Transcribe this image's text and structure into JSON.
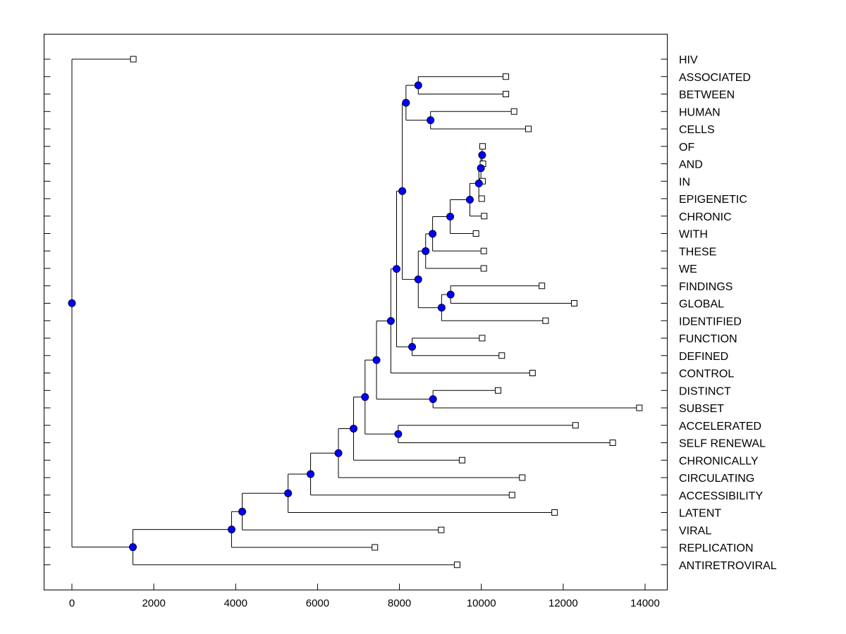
{
  "chart_data": {
    "type": "dendrogram",
    "title": "",
    "xlabel": "",
    "ylabel": "",
    "xlim": [
      -700,
      14700
    ],
    "x_ticks": [
      0,
      2000,
      4000,
      6000,
      8000,
      10000,
      12000,
      14000
    ],
    "x_tick_labels": [
      "0",
      "2000",
      "4000",
      "6000",
      "8000",
      "10000",
      "12000",
      "14000"
    ],
    "orientation": "leaves-right",
    "grid": false,
    "leaves": [
      {
        "label": "HIV",
        "x": 1500
      },
      {
        "label": "ASSOCIATED",
        "x": 10600
      },
      {
        "label": "BETWEEN",
        "x": 10600
      },
      {
        "label": "HUMAN",
        "x": 10800
      },
      {
        "label": "CELLS",
        "x": 11150
      },
      {
        "label": "OF",
        "x": 10030
      },
      {
        "label": "AND",
        "x": 10040
      },
      {
        "label": "IN",
        "x": 10030
      },
      {
        "label": "EPIGENETIC",
        "x": 10010
      },
      {
        "label": "CHRONIC",
        "x": 10070
      },
      {
        "label": "WITH",
        "x": 9870
      },
      {
        "label": "THESE",
        "x": 10060
      },
      {
        "label": "WE",
        "x": 10060
      },
      {
        "label": "FINDINGS",
        "x": 11480
      },
      {
        "label": "GLOBAL",
        "x": 12270
      },
      {
        "label": "IDENTIFIED",
        "x": 11570
      },
      {
        "label": "FUNCTION",
        "x": 10020
      },
      {
        "label": "DEFINED",
        "x": 10500
      },
      {
        "label": "CONTROL",
        "x": 11250
      },
      {
        "label": "DISTINCT",
        "x": 10410
      },
      {
        "label": "SUBSET",
        "x": 13860
      },
      {
        "label": "ACCELERATED",
        "x": 12300
      },
      {
        "label": "SELF RENEWAL",
        "x": 13210
      },
      {
        "label": "CHRONICALLY",
        "x": 9530
      },
      {
        "label": "CIRCULATING",
        "x": 11000
      },
      {
        "label": "ACCESSIBILITY",
        "x": 10750
      },
      {
        "label": "LATENT",
        "x": 11790
      },
      {
        "label": "VIRAL",
        "x": 9020
      },
      {
        "label": "REPLICATION",
        "x": 7400
      },
      {
        "label": "ANTIRETROVIRAL",
        "x": 9410
      }
    ],
    "merges": [
      {
        "id": "n1",
        "x": 8460,
        "children": [
          "ASSOCIATED",
          "BETWEEN"
        ]
      },
      {
        "id": "n2",
        "x": 8760,
        "children": [
          "HUMAN",
          "CELLS"
        ]
      },
      {
        "id": "n3",
        "x": 8160,
        "children": [
          "n1",
          "n2"
        ]
      },
      {
        "id": "n4",
        "x": 10020,
        "children": [
          "OF",
          "AND"
        ]
      },
      {
        "id": "n5",
        "x": 9990,
        "children": [
          "n4",
          "IN"
        ]
      },
      {
        "id": "n6",
        "x": 9940,
        "children": [
          "n5",
          "EPIGENETIC"
        ]
      },
      {
        "id": "n7",
        "x": 9720,
        "children": [
          "n6",
          "CHRONIC"
        ]
      },
      {
        "id": "n8",
        "x": 9240,
        "children": [
          "n7",
          "WITH"
        ]
      },
      {
        "id": "n9",
        "x": 8810,
        "children": [
          "n8",
          "THESE"
        ]
      },
      {
        "id": "n10",
        "x": 8640,
        "children": [
          "n9",
          "WE"
        ]
      },
      {
        "id": "n11",
        "x": 9250,
        "children": [
          "FINDINGS",
          "GLOBAL"
        ]
      },
      {
        "id": "n12",
        "x": 9030,
        "children": [
          "n11",
          "IDENTIFIED"
        ]
      },
      {
        "id": "n13",
        "x": 8460,
        "children": [
          "n10",
          "n12"
        ]
      },
      {
        "id": "n14",
        "x": 8070,
        "children": [
          "n3",
          "n13"
        ]
      },
      {
        "id": "n15",
        "x": 8310,
        "children": [
          "FUNCTION",
          "DEFINED"
        ]
      },
      {
        "id": "n16",
        "x": 7930,
        "children": [
          "n14",
          "n15"
        ]
      },
      {
        "id": "n17",
        "x": 7790,
        "children": [
          "n16",
          "CONTROL"
        ]
      },
      {
        "id": "n18",
        "x": 8820,
        "children": [
          "DISTINCT",
          "SUBSET"
        ]
      },
      {
        "id": "n19",
        "x": 7440,
        "children": [
          "n17",
          "n18"
        ]
      },
      {
        "id": "n20",
        "x": 7970,
        "children": [
          "ACCELERATED",
          "SELF RENEWAL"
        ]
      },
      {
        "id": "n21",
        "x": 7160,
        "children": [
          "n19",
          "n20"
        ]
      },
      {
        "id": "n22",
        "x": 6880,
        "children": [
          "n21",
          "CHRONICALLY"
        ]
      },
      {
        "id": "n23",
        "x": 6510,
        "children": [
          "n22",
          "CIRCULATING"
        ]
      },
      {
        "id": "n24",
        "x": 5830,
        "children": [
          "n23",
          "ACCESSIBILITY"
        ]
      },
      {
        "id": "n25",
        "x": 5280,
        "children": [
          "n24",
          "LATENT"
        ]
      },
      {
        "id": "n26",
        "x": 4160,
        "children": [
          "n25",
          "VIRAL"
        ]
      },
      {
        "id": "n27",
        "x": 3900,
        "children": [
          "n26",
          "REPLICATION"
        ]
      },
      {
        "id": "n28",
        "x": 1490,
        "children": [
          "n27",
          "ANTIRETROVIRAL"
        ]
      },
      {
        "id": "root",
        "x": 0,
        "children": [
          "HIV",
          "n28"
        ]
      }
    ]
  },
  "colors": {
    "node_fill": "#0000ff",
    "node_stroke": "#00003a",
    "line": "#000000",
    "leaf_fill": "#ffffff",
    "background": "#ffffff"
  }
}
